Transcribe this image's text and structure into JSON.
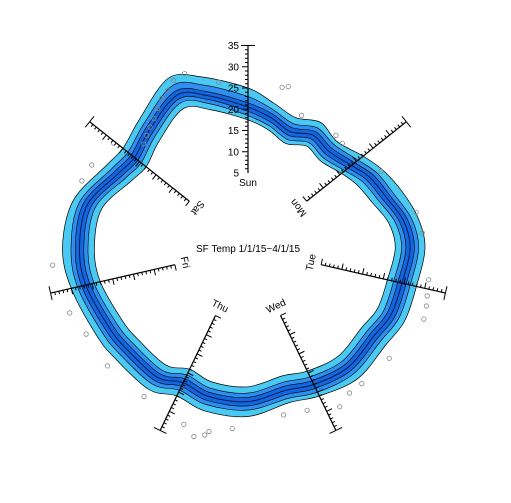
{
  "chart_data": {
    "type": "radial-area",
    "title": "SF Temp 1/1/15~4/1/15",
    "axis_labels": [
      "Sun",
      "Mon",
      "Tue",
      "Wed",
      "Thu",
      "Fri",
      "Sat"
    ],
    "ticks": [
      5,
      10,
      15,
      20,
      25,
      30,
      35
    ],
    "rlim": [
      5,
      35
    ],
    "series": [
      {
        "band": "min-max"
      },
      {
        "band": "p10-p90"
      },
      {
        "band": "p25-p75"
      },
      {
        "band": "median"
      }
    ],
    "profile": {
      "angle_deg": [
        0,
        10,
        20,
        30,
        40,
        51.4,
        60,
        70,
        80,
        90,
        102.9,
        115,
        125,
        140,
        154.3,
        165,
        180,
        195,
        205.7,
        215,
        230,
        240,
        257.1,
        270,
        285,
        300,
        308.6,
        320,
        335,
        345
      ],
      "max": [
        25,
        22,
        20,
        21.5,
        20,
        22,
        24,
        26,
        28,
        29,
        28,
        28,
        27,
        27.5,
        26,
        25,
        27,
        27,
        26,
        28,
        28,
        28.5,
        30,
        31,
        30,
        26,
        25,
        27,
        31.5,
        29
      ],
      "p90": [
        23,
        20.5,
        18.5,
        20,
        19,
        20.5,
        22.5,
        24,
        26.5,
        27.5,
        26.5,
        26.5,
        25.5,
        26,
        25,
        24,
        25.5,
        25.5,
        24.5,
        26.5,
        26.5,
        27,
        28.5,
        29,
        28.5,
        24.5,
        23.5,
        25.5,
        29.5,
        27
      ],
      "p75": [
        21.5,
        19.5,
        17.5,
        19,
        18,
        19.5,
        21.5,
        23,
        25.5,
        26.5,
        25.5,
        25.5,
        24.5,
        25,
        24,
        23,
        24.5,
        24.5,
        23.5,
        25.5,
        25.5,
        26,
        27.5,
        28,
        27.5,
        23.5,
        22.5,
        24.5,
        28,
        25.5
      ],
      "median": [
        20.5,
        18.5,
        16.5,
        18,
        17,
        18.5,
        20.5,
        22,
        24.5,
        25.5,
        24.5,
        24.5,
        23.5,
        24,
        23,
        22,
        23.5,
        23.5,
        22.5,
        24.5,
        24.5,
        25,
        26.5,
        27,
        26.5,
        22.5,
        21.5,
        23.5,
        27,
        24.5
      ],
      "p25": [
        19.5,
        17.5,
        15.5,
        17,
        16,
        17.5,
        19.5,
        21,
        23.5,
        24.5,
        23.5,
        23.5,
        22.5,
        23,
        22,
        21,
        22.5,
        22.5,
        21.5,
        23.5,
        23.5,
        24,
        25.5,
        26,
        25.5,
        21.5,
        20.5,
        22.5,
        26,
        23.5
      ],
      "p10": [
        18.5,
        16.5,
        14.5,
        16,
        15,
        16.5,
        18.5,
        20,
        22.5,
        23.5,
        22.5,
        22.5,
        21.5,
        22,
        21,
        20,
        21.5,
        21.5,
        20.5,
        22.5,
        22.5,
        23,
        24.5,
        25,
        24.5,
        20.5,
        19.5,
        21.5,
        25,
        22.5
      ],
      "min": [
        17.5,
        15.5,
        13.5,
        15,
        14,
        15.5,
        17,
        18.5,
        21,
        22,
        21,
        21,
        20,
        20.5,
        19.5,
        18.5,
        20,
        20,
        19,
        21,
        21,
        21.5,
        23,
        23.5,
        23,
        19,
        18,
        20,
        23.5,
        21
      ]
    },
    "outliers": [
      [
        12,
        26
      ],
      [
        14,
        26.5
      ],
      [
        22,
        21
      ],
      [
        38,
        21
      ],
      [
        42,
        20.5
      ],
      [
        60,
        23.5
      ],
      [
        78,
        27.8
      ],
      [
        85,
        28.5
      ],
      [
        100,
        30.5
      ],
      [
        105,
        31
      ],
      [
        108,
        31.5
      ],
      [
        112,
        32
      ],
      [
        128,
        29.5
      ],
      [
        140,
        29
      ],
      [
        145,
        29
      ],
      [
        150,
        30.5
      ],
      [
        160,
        28
      ],
      [
        168,
        27.5
      ],
      [
        185,
        30
      ],
      [
        192,
        31.5
      ],
      [
        193,
        32.5
      ],
      [
        196,
        33.5
      ],
      [
        200,
        31.5
      ],
      [
        215,
        30
      ],
      [
        230,
        30.5
      ],
      [
        242,
        30.5
      ],
      [
        250,
        32
      ],
      [
        265,
        33.5
      ],
      [
        292,
        29.5
      ],
      [
        298,
        29
      ],
      [
        308,
        27.5
      ],
      [
        315,
        22
      ],
      [
        318,
        23
      ],
      [
        321,
        24
      ],
      [
        324,
        25
      ],
      [
        327,
        26.5
      ],
      [
        330,
        28
      ],
      [
        333,
        29
      ],
      [
        336,
        30.5
      ],
      [
        340,
        31
      ],
      [
        350,
        27
      ]
    ]
  }
}
